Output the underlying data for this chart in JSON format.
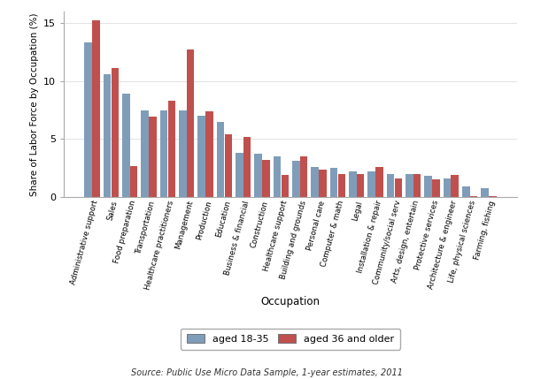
{
  "categories": [
    "Administrative support",
    "Sales",
    "Food preparation",
    "Transportation",
    "Healthcare practitioners",
    "Management",
    "Production",
    "Education",
    "Business & financial",
    "Construction",
    "Healthcare support",
    "Building and grounds",
    "Personal care",
    "Computer & math",
    "Legal",
    "Installation & repair",
    "Community/social serv",
    "Arts, design, entertain",
    "Protective services",
    "Architecture & engineer",
    "Life, physical sciences",
    "Farming, fishing"
  ],
  "young": [
    13.3,
    10.6,
    8.9,
    7.5,
    7.5,
    7.5,
    7.0,
    6.5,
    3.8,
    3.7,
    3.5,
    3.1,
    2.6,
    2.5,
    2.2,
    2.2,
    2.0,
    2.0,
    1.8,
    1.6,
    0.9,
    0.8
  ],
  "older": [
    15.2,
    11.1,
    2.7,
    6.9,
    8.3,
    12.7,
    7.4,
    5.4,
    5.2,
    3.2,
    1.9,
    3.5,
    2.4,
    2.0,
    2.0,
    2.6,
    1.6,
    2.0,
    1.5,
    1.9,
    0.1,
    0.1
  ],
  "young_color": "#7f9db9",
  "older_color": "#c0504d",
  "ylabel": "Share of Labor Force by Occupation (%)",
  "xlabel": "Occupation",
  "ylim": [
    0,
    16
  ],
  "yticks": [
    0,
    5,
    10,
    15
  ],
  "legend_young": "aged 18-35",
  "legend_older": "aged 36 and older",
  "source": "Source: Public Use Micro Data Sample, 1-year estimates, 2011",
  "bg_color": "#ffffff",
  "spine_color": "#aaaaaa"
}
